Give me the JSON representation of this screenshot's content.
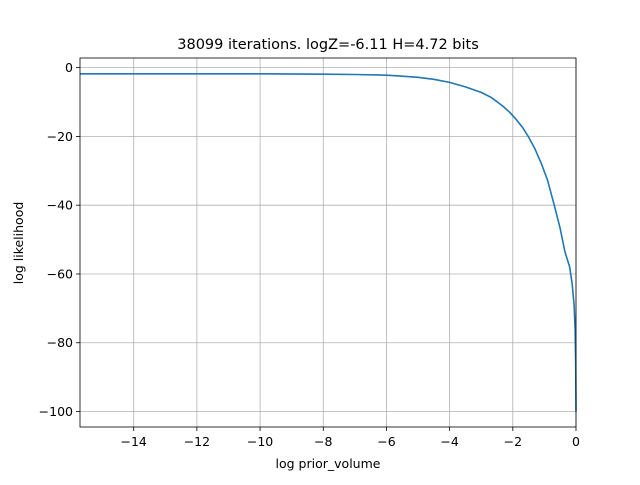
{
  "chart_data": {
    "type": "line",
    "title": "38099 iterations. logZ=-6.11 H=4.72 bits",
    "xlabel": "log prior_volume",
    "ylabel": "log likelihood",
    "xlim": [
      -15.7,
      0.0
    ],
    "ylim": [
      -104.5,
      2.8
    ],
    "grid": true,
    "line_color": "#1f77b4",
    "x_ticks": [
      -14,
      -12,
      -10,
      -8,
      -6,
      -4,
      -2,
      0
    ],
    "x_tick_labels": [
      "−14",
      "−12",
      "−10",
      "−8",
      "−6",
      "−4",
      "−2",
      "0"
    ],
    "y_ticks": [
      0,
      -20,
      -40,
      -60,
      -80,
      -100
    ],
    "y_tick_labels": [
      "0",
      "−20",
      "−40",
      "−60",
      "−80",
      "−100"
    ],
    "series": [
      {
        "x": [
          -15.7,
          -14.0,
          -12.0,
          -10.0,
          -8.0,
          -7.0,
          -6.0,
          -5.5,
          -5.0,
          -4.5,
          -4.0,
          -3.5,
          -3.0,
          -2.7,
          -2.5,
          -2.3,
          -2.1,
          -1.9,
          -1.7,
          -1.5,
          -1.3,
          -1.1,
          -0.9,
          -0.7,
          -0.5,
          -0.35,
          -0.2,
          -0.12,
          -0.06,
          -0.03,
          -0.01,
          0.0
        ],
        "y": [
          -1.8,
          -1.8,
          -1.8,
          -1.8,
          -1.9,
          -2.0,
          -2.2,
          -2.5,
          -2.8,
          -3.4,
          -4.3,
          -5.6,
          -7.2,
          -8.6,
          -9.9,
          -11.3,
          -13.0,
          -15.0,
          -17.3,
          -20.2,
          -23.6,
          -27.8,
          -32.8,
          -39.6,
          -46.8,
          -53.5,
          -58.0,
          -63.0,
          -69.0,
          -76.0,
          -86.0,
          -100.0
        ]
      }
    ]
  }
}
